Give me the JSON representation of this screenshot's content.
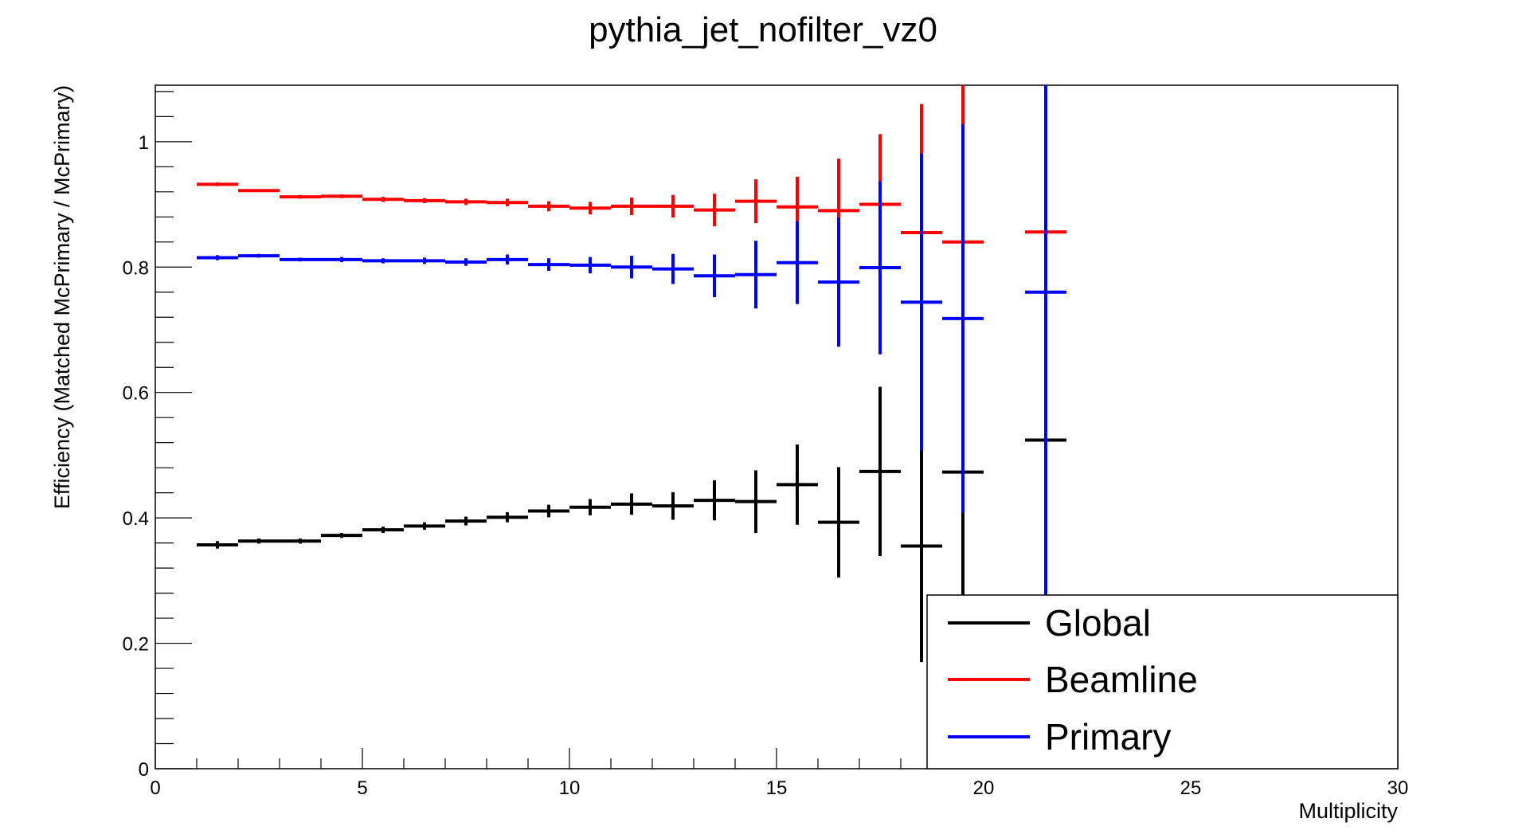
{
  "chart_data": {
    "type": "scatter",
    "title": "pythia_jet_nofilter_vz0",
    "xlabel": "Multiplicity",
    "ylabel": "Efficiency (Matched McPrimary / McPrimary)",
    "xlim": [
      0,
      30
    ],
    "ylim": [
      0,
      1.09
    ],
    "x_ticks": [
      "0",
      "5",
      "10",
      "15",
      "20",
      "25",
      "30"
    ],
    "y_ticks": [
      "0",
      "0.2",
      "0.4",
      "0.6",
      "0.8",
      "1"
    ],
    "legend_position": "bottom-right",
    "grid": false,
    "series": [
      {
        "name": "Global",
        "color": "#000000",
        "points": [
          {
            "x": 1.5,
            "y": 0.357,
            "err": 0.006
          },
          {
            "x": 2.5,
            "y": 0.363,
            "err": 0.004
          },
          {
            "x": 3.5,
            "y": 0.363,
            "err": 0.004
          },
          {
            "x": 4.5,
            "y": 0.372,
            "err": 0.004
          },
          {
            "x": 5.5,
            "y": 0.381,
            "err": 0.005
          },
          {
            "x": 6.5,
            "y": 0.387,
            "err": 0.006
          },
          {
            "x": 7.5,
            "y": 0.395,
            "err": 0.007
          },
          {
            "x": 8.5,
            "y": 0.401,
            "err": 0.008
          },
          {
            "x": 9.5,
            "y": 0.411,
            "err": 0.01
          },
          {
            "x": 10.5,
            "y": 0.417,
            "err": 0.013
          },
          {
            "x": 11.5,
            "y": 0.422,
            "err": 0.017
          },
          {
            "x": 12.5,
            "y": 0.419,
            "err": 0.022
          },
          {
            "x": 13.5,
            "y": 0.428,
            "err": 0.032
          },
          {
            "x": 14.5,
            "y": 0.426,
            "err": 0.05
          },
          {
            "x": 15.5,
            "y": 0.453,
            "err": 0.064
          },
          {
            "x": 16.5,
            "y": 0.393,
            "err": 0.088
          },
          {
            "x": 17.5,
            "y": 0.474,
            "err": 0.135
          },
          {
            "x": 18.5,
            "y": 0.355,
            "err": 0.185
          },
          {
            "x": 19.5,
            "y": 0.473,
            "err": 0.26
          },
          {
            "x": 21.5,
            "y": 0.524,
            "err": 0.0
          }
        ]
      },
      {
        "name": "Beamline",
        "color": "#ff0000",
        "points": [
          {
            "x": 1.5,
            "y": 0.932,
            "err": 0.003
          },
          {
            "x": 2.5,
            "y": 0.922,
            "err": 0.002
          },
          {
            "x": 3.5,
            "y": 0.912,
            "err": 0.003
          },
          {
            "x": 4.5,
            "y": 0.913,
            "err": 0.003
          },
          {
            "x": 5.5,
            "y": 0.908,
            "err": 0.004
          },
          {
            "x": 6.5,
            "y": 0.906,
            "err": 0.004
          },
          {
            "x": 7.5,
            "y": 0.904,
            "err": 0.005
          },
          {
            "x": 8.5,
            "y": 0.903,
            "err": 0.006
          },
          {
            "x": 9.5,
            "y": 0.897,
            "err": 0.008
          },
          {
            "x": 10.5,
            "y": 0.894,
            "err": 0.01
          },
          {
            "x": 11.5,
            "y": 0.897,
            "err": 0.014
          },
          {
            "x": 12.5,
            "y": 0.897,
            "err": 0.018
          },
          {
            "x": 13.5,
            "y": 0.891,
            "err": 0.026
          },
          {
            "x": 14.5,
            "y": 0.905,
            "err": 0.035
          },
          {
            "x": 15.5,
            "y": 0.896,
            "err": 0.048
          },
          {
            "x": 16.5,
            "y": 0.89,
            "err": 0.083
          },
          {
            "x": 17.5,
            "y": 0.9,
            "err": 0.112
          },
          {
            "x": 18.5,
            "y": 0.855,
            "err": 0.205
          },
          {
            "x": 19.5,
            "y": 0.84,
            "err": 0.26
          },
          {
            "x": 21.5,
            "y": 0.856,
            "err": 0.0
          }
        ]
      },
      {
        "name": "Primary",
        "color": "#0000ff",
        "points": [
          {
            "x": 1.5,
            "y": 0.815,
            "err": 0.004
          },
          {
            "x": 2.5,
            "y": 0.818,
            "err": 0.003
          },
          {
            "x": 3.5,
            "y": 0.812,
            "err": 0.003
          },
          {
            "x": 4.5,
            "y": 0.812,
            "err": 0.004
          },
          {
            "x": 5.5,
            "y": 0.81,
            "err": 0.004
          },
          {
            "x": 6.5,
            "y": 0.81,
            "err": 0.005
          },
          {
            "x": 7.5,
            "y": 0.808,
            "err": 0.006
          },
          {
            "x": 8.5,
            "y": 0.812,
            "err": 0.008
          },
          {
            "x": 9.5,
            "y": 0.804,
            "err": 0.01
          },
          {
            "x": 10.5,
            "y": 0.803,
            "err": 0.013
          },
          {
            "x": 11.5,
            "y": 0.8,
            "err": 0.018
          },
          {
            "x": 12.5,
            "y": 0.797,
            "err": 0.024
          },
          {
            "x": 13.5,
            "y": 0.786,
            "err": 0.034
          },
          {
            "x": 14.5,
            "y": 0.788,
            "err": 0.054
          },
          {
            "x": 15.5,
            "y": 0.807,
            "err": 0.066
          },
          {
            "x": 16.5,
            "y": 0.776,
            "err": 0.103
          },
          {
            "x": 17.5,
            "y": 0.799,
            "err": 0.138
          },
          {
            "x": 18.5,
            "y": 0.744,
            "err": 0.237
          },
          {
            "x": 19.5,
            "y": 0.718,
            "err": 0.31
          },
          {
            "x": 21.5,
            "y": 0.76,
            "err": 0.5
          }
        ]
      }
    ]
  }
}
